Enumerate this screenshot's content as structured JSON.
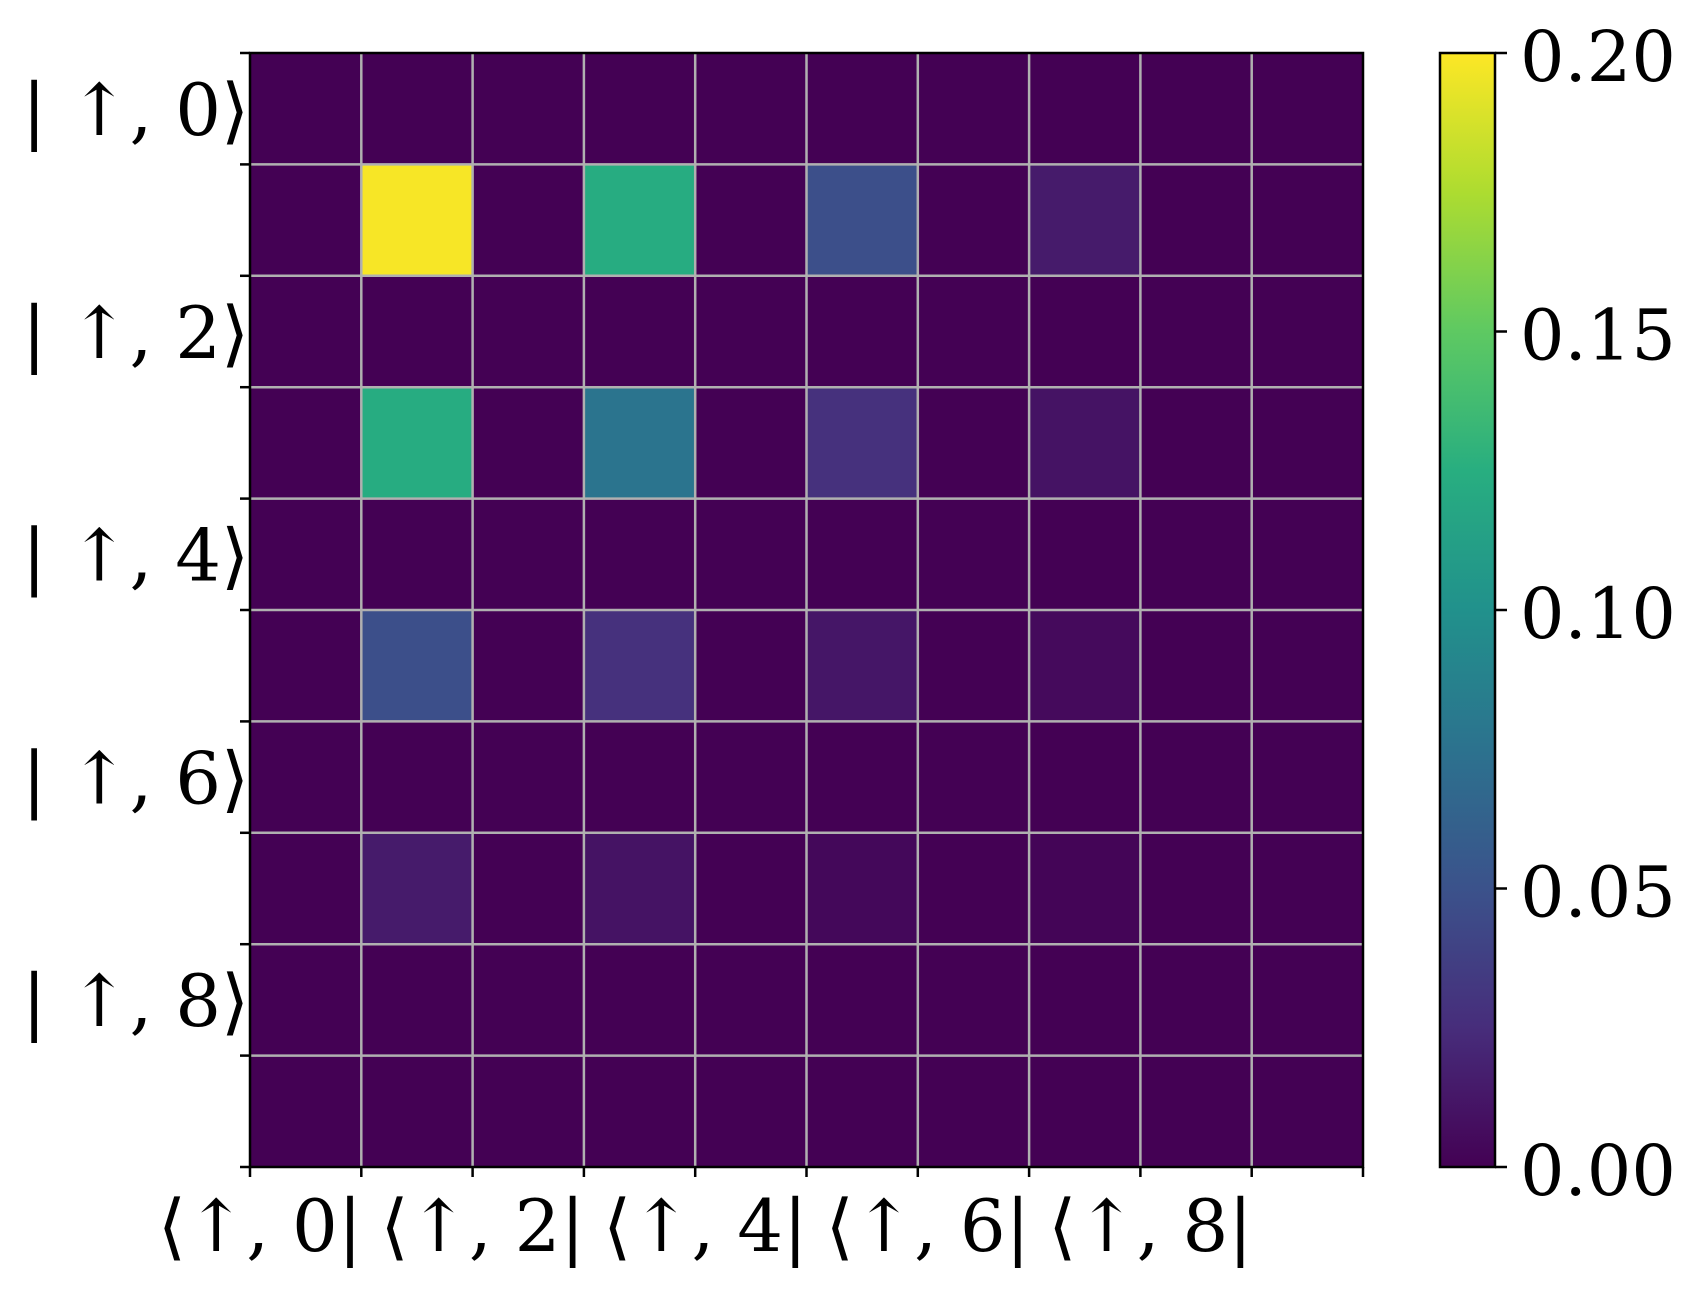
{
  "chart_data": {
    "type": "heatmap",
    "title": "",
    "xlabel": "",
    "ylabel": "",
    "rows": 10,
    "cols": 10,
    "x_tick_labels": [
      "⟨↑, 0|",
      "⟨↑, 2|",
      "⟨↑, 4|",
      "⟨↑, 6|",
      "⟨↑, 8|"
    ],
    "x_tick_label_columns": [
      0,
      2,
      4,
      6,
      8
    ],
    "y_tick_labels": [
      "| ↑, 0⟩",
      "| ↑, 2⟩",
      "| ↑, 4⟩",
      "| ↑, 6⟩",
      "| ↑, 8⟩"
    ],
    "y_tick_label_rows": [
      0,
      2,
      4,
      6,
      8
    ],
    "values": [
      [
        0,
        0,
        0,
        0,
        0,
        0,
        0,
        0,
        0,
        0
      ],
      [
        0,
        0.198,
        0,
        0.123,
        0,
        0.048,
        0,
        0.015,
        0,
        0
      ],
      [
        0,
        0,
        0,
        0,
        0,
        0,
        0,
        0,
        0,
        0
      ],
      [
        0,
        0.123,
        0,
        0.077,
        0,
        0.028,
        0,
        0.01,
        0,
        0
      ],
      [
        0,
        0,
        0,
        0,
        0,
        0,
        0,
        0,
        0,
        0
      ],
      [
        0,
        0.048,
        0,
        0.028,
        0,
        0.012,
        0,
        0.005,
        0,
        0
      ],
      [
        0,
        0,
        0,
        0,
        0,
        0,
        0,
        0,
        0,
        0
      ],
      [
        0,
        0.015,
        0,
        0.01,
        0,
        0.004,
        0,
        0.002,
        0,
        0
      ],
      [
        0,
        0,
        0,
        0,
        0,
        0,
        0,
        0,
        0,
        0
      ],
      [
        0,
        0,
        0,
        0,
        0,
        0,
        0,
        0,
        0,
        0
      ]
    ],
    "colorbar": {
      "colormap": "viridis",
      "vmin": 0.0,
      "vmax": 0.2,
      "ticks": [
        0.0,
        0.05,
        0.1,
        0.15,
        0.2
      ],
      "tick_labels": [
        "0.00",
        "0.05",
        "0.10",
        "0.15",
        "0.20"
      ]
    },
    "grid": true,
    "grid_color": "#b0b0b0"
  }
}
